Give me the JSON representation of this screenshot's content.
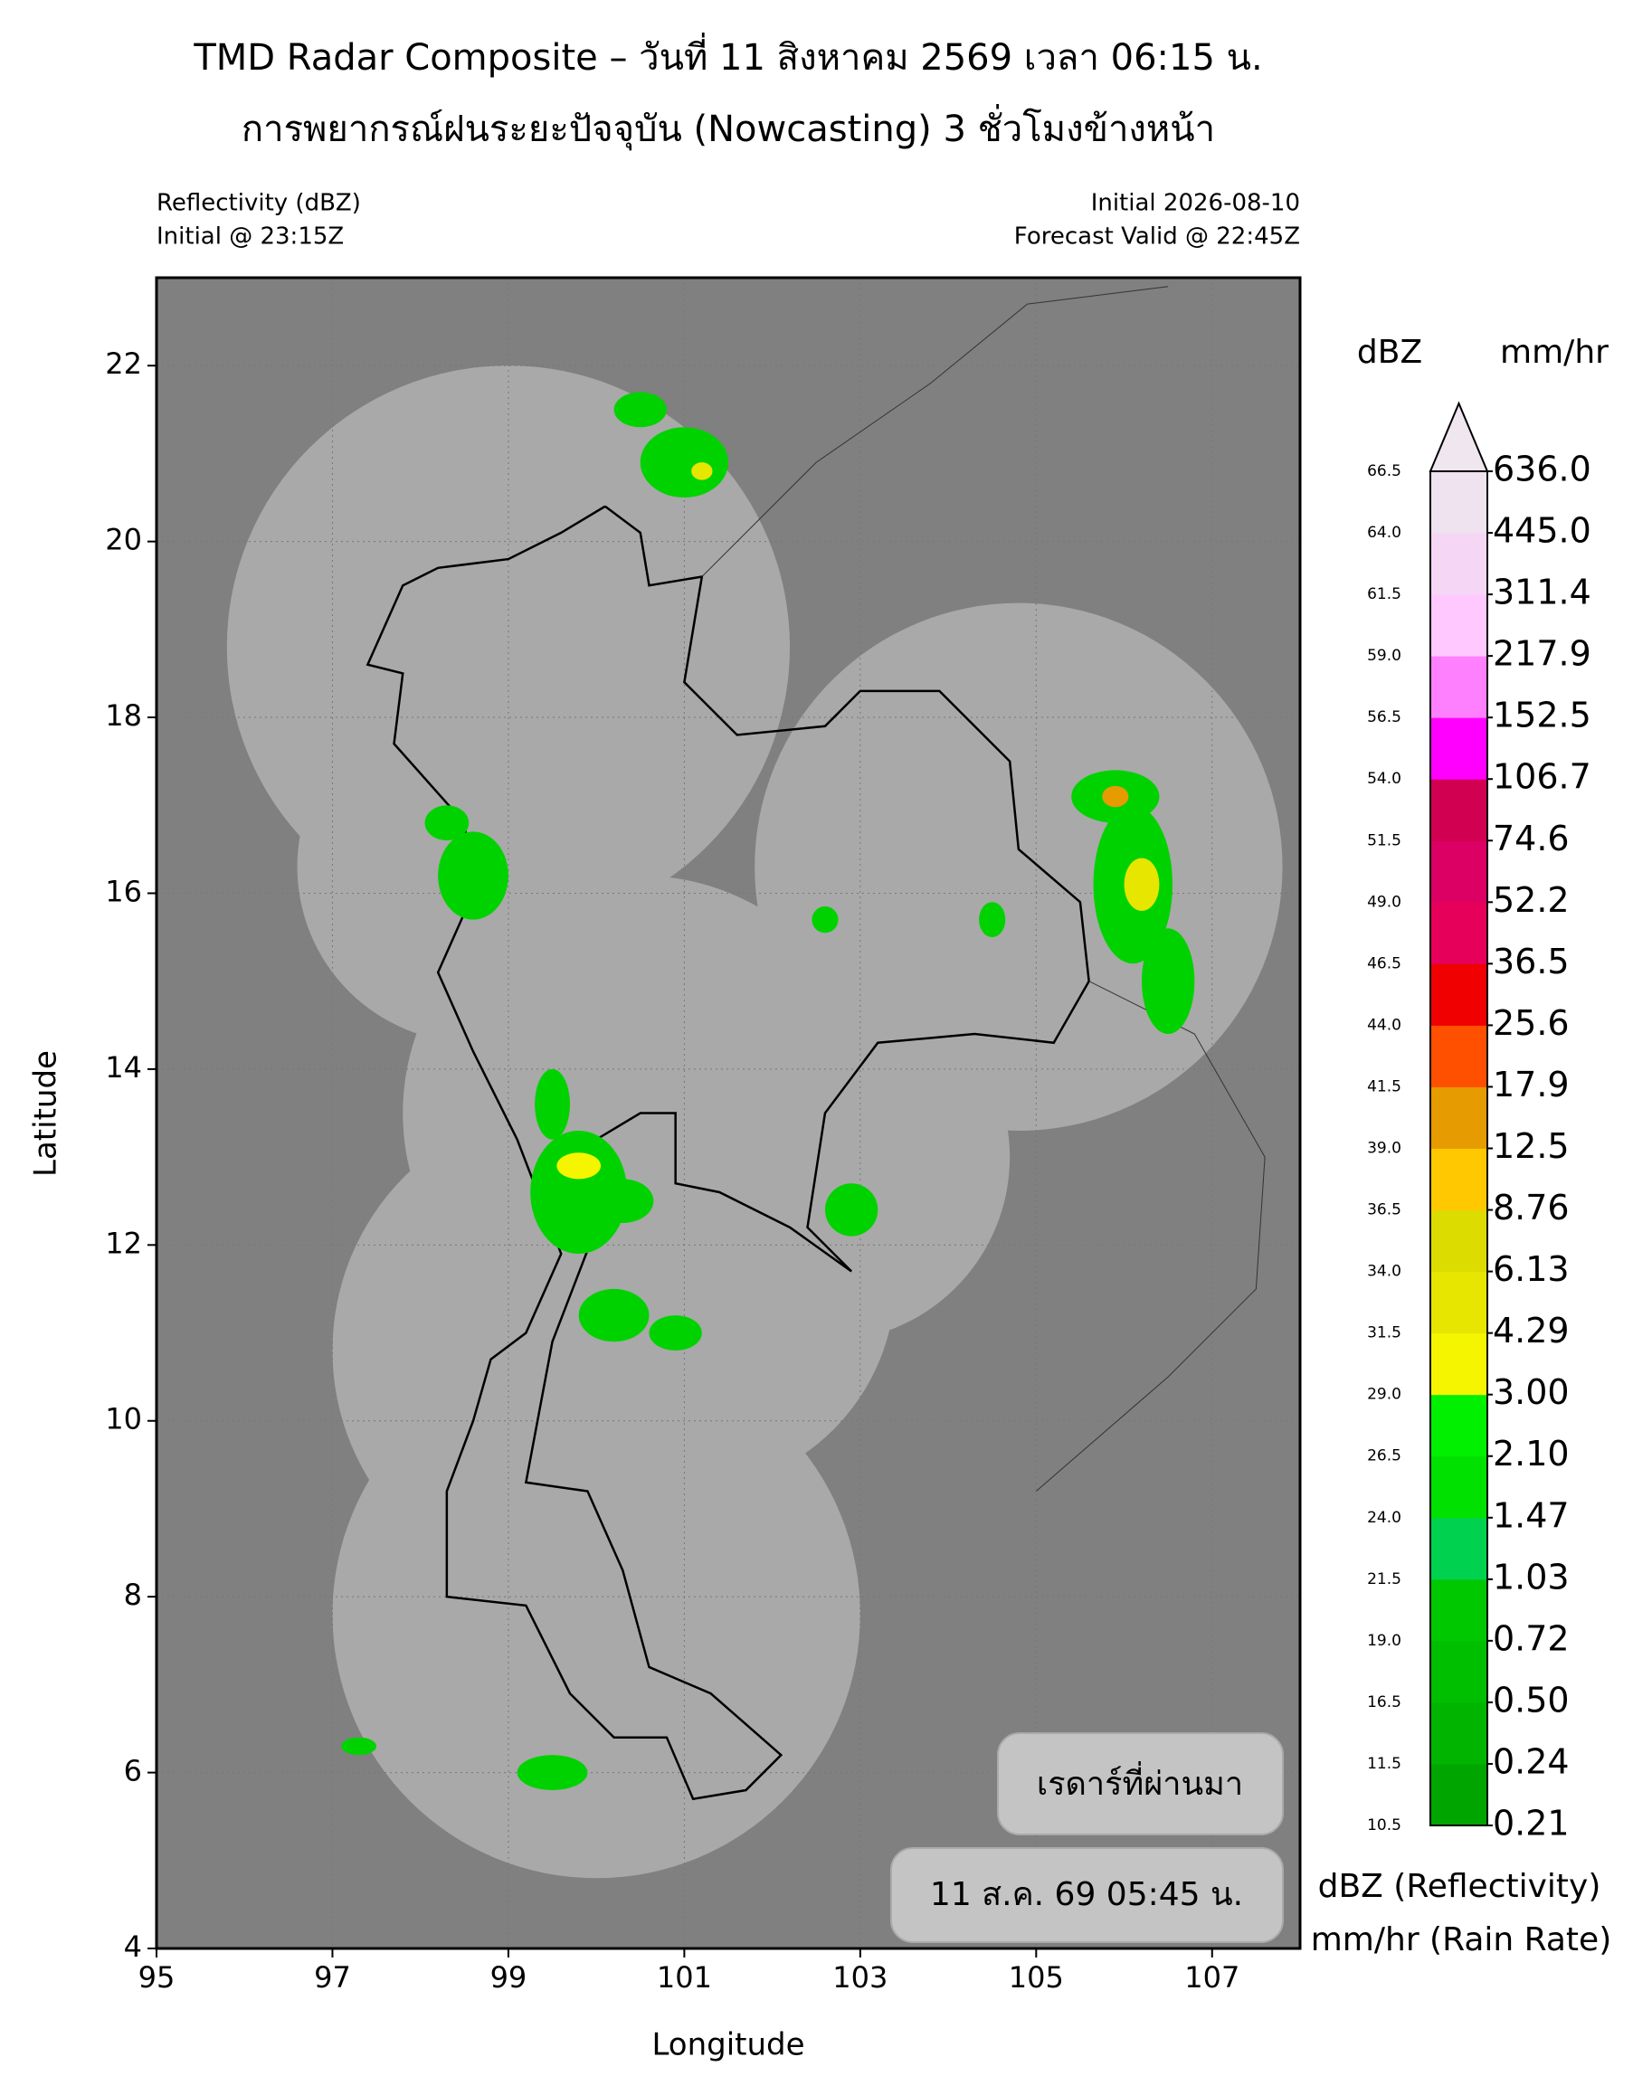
{
  "header": {
    "title_line1": "TMD Radar Composite – วันที่ 11 สิงหาคม 2569 เวลา 06:15 น.",
    "title_line2": "การพยากรณ์ฝนระยะปัจจุบัน (Nowcasting) 3 ชั่วโมงข้างหน้า",
    "left_line1": "Reflectivity (dBZ)",
    "left_line2": "Initial @ 23:15Z",
    "right_line1": "Initial 2026-08-10",
    "right_line2": "Forecast Valid @ 22:45Z"
  },
  "map": {
    "x_label": "Longitude",
    "y_label": "Latitude",
    "xlim": [
      95,
      108
    ],
    "ylim": [
      4,
      23
    ],
    "xticks": [
      95,
      97,
      99,
      101,
      103,
      105,
      107
    ],
    "yticks": [
      4,
      6,
      8,
      10,
      12,
      14,
      16,
      18,
      20,
      22
    ],
    "grid": true
  },
  "colorbar": {
    "dbz_label": "dBZ",
    "rate_label": "mm/hr",
    "dbz_levels": [
      10.5,
      11.5,
      16.5,
      {
        "value": 19,
        "label": "19.0"
      },
      21.5,
      {
        "value": 24,
        "label": "24.0"
      },
      26.5,
      {
        "value": 29,
        "label": "29.0"
      },
      31.5,
      {
        "value": 34,
        "label": "34.0"
      },
      36.5,
      {
        "value": 39,
        "label": "39.0"
      },
      41.5,
      {
        "value": 44,
        "label": "44.0"
      },
      46.5,
      {
        "value": 49,
        "label": "49.0"
      },
      51.5,
      {
        "value": 54,
        "label": "54.0"
      },
      56.5,
      {
        "value": 59,
        "label": "59.0"
      },
      61.5,
      {
        "value": 64,
        "label": "64.0"
      },
      66.5
    ],
    "rate_levels": [
      0.21,
      0.24,
      {
        "value": 0.5,
        "label": "0.50"
      },
      0.72,
      1.03,
      1.47,
      {
        "value": 2.1,
        "label": "2.10"
      },
      {
        "value": 3,
        "label": "3.00"
      },
      4.29,
      6.13,
      8.76,
      12.5,
      17.9,
      25.6,
      36.5,
      52.2,
      74.6,
      106.7,
      152.5,
      217.9,
      311.4,
      {
        "value": 445,
        "label": "445.0"
      },
      {
        "value": 636,
        "label": "636.0"
      }
    ],
    "colors": [
      "#00a500",
      "#00b400",
      "#00be00",
      "#00c800",
      "#00d250",
      "#00e100",
      "#00f000",
      "#f5f500",
      "#e6e600",
      "#dcdc00",
      "#ffc800",
      "#e69b00",
      "#ff5000",
      "#f00000",
      "#e6005a",
      "#dc0064",
      "#d20050",
      "#ff00ff",
      "#ff80ff",
      "#ffc8ff",
      "#f5d7f5",
      "#efe3ef"
    ],
    "extend_color": "#f0e6f0",
    "legend_line1": "dBZ (Reflectivity)",
    "legend_line2": "mm/hr (Rain Rate)"
  },
  "overlay": {
    "label": "เรดาร์ที่ผ่านมา",
    "time": "11 ส.ค. 69 05:45 น."
  }
}
